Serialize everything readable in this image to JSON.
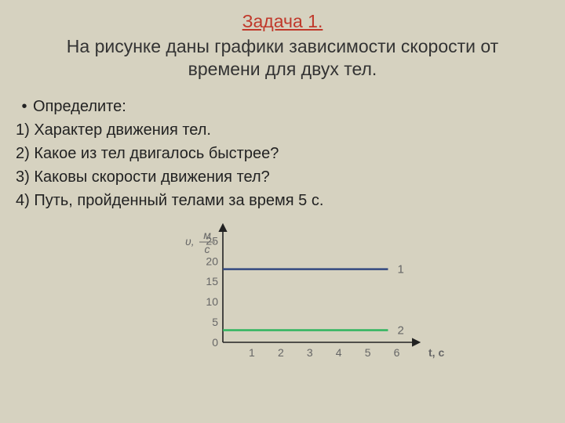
{
  "title": "Задача 1.",
  "subtitle_line1": "На рисунке даны графики зависимости скорости от",
  "subtitle_line2": "времени для двух тел.",
  "bullet_label": "Определите:",
  "questions": {
    "q1": "1) Характер движения тел.",
    "q2": "2) Какое из тел двигалось быстрее?",
    "q3": "3) Каковы скорости движения тел?",
    "q4": "4) Путь, пройденный телами за время 5 с."
  },
  "chart": {
    "type": "line",
    "background_color": "#d6d2c0",
    "axis_color": "#222222",
    "tick_text_color": "#666666",
    "xlabel": "t, c",
    "ylabel_symbol": "υ",
    "ylabel_numer": "м",
    "ylabel_denom": "с",
    "x_ticks": [
      "1",
      "2",
      "3",
      "4",
      "5",
      "6"
    ],
    "y_ticks": [
      "0",
      "5",
      "10",
      "15",
      "20",
      "25"
    ],
    "xlim": [
      0,
      6.5
    ],
    "ylim": [
      0,
      27
    ],
    "series": [
      {
        "name": "line-1",
        "label": "1",
        "color": "#33497f",
        "width": 2.5,
        "y_value": 18,
        "x_start": 0,
        "x_end": 5.7
      },
      {
        "name": "line-2",
        "label": "2",
        "color": "#2fb55e",
        "width": 2.5,
        "y_value": 3,
        "x_start": 0,
        "x_end": 5.7
      }
    ],
    "label_fontsize": 14,
    "line_label_fontsize": 15
  }
}
